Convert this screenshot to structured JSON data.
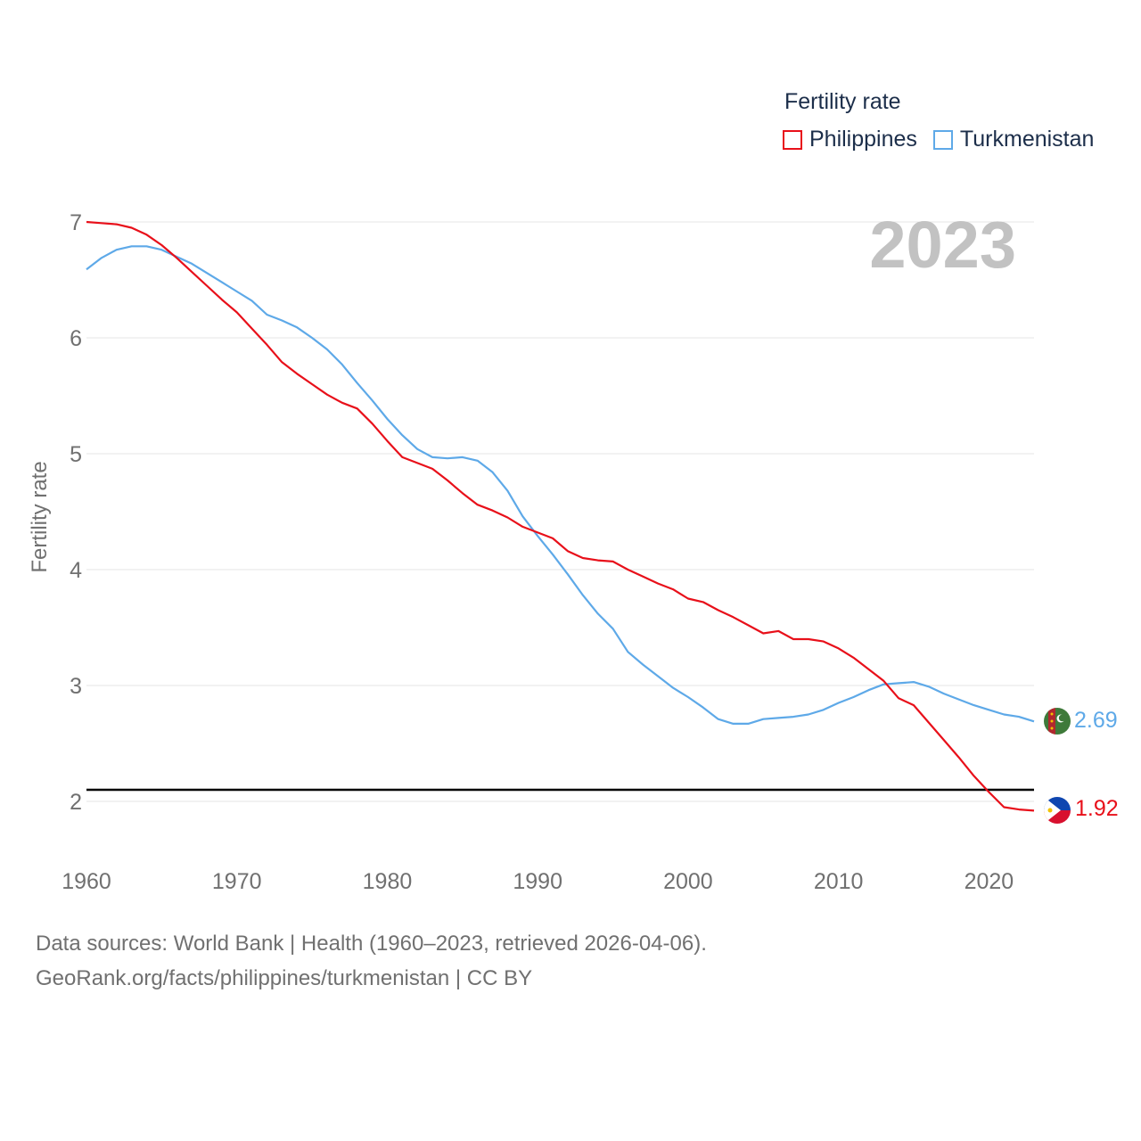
{
  "legend": {
    "title": "Fertility rate",
    "items": [
      {
        "label": "Philippines",
        "color": "#e8101a"
      },
      {
        "label": "Turkmenistan",
        "color": "#5ea9e8"
      }
    ]
  },
  "footer": {
    "line1": "Data sources: World Bank | Health (1960–2023, retrieved 2026-04-06).",
    "line2": "GeoRank.org/facts/philippines/turkmenistan | CC BY"
  },
  "chart_data": {
    "type": "line",
    "title": "",
    "year_label": "2023",
    "xlabel": "",
    "ylabel": "Fertility rate",
    "xlim": [
      1960,
      2023
    ],
    "ylim": [
      1.6,
      7.1
    ],
    "xticks": [
      1960,
      1970,
      1980,
      1990,
      2000,
      2010,
      2020
    ],
    "yticks": [
      2,
      3,
      4,
      5,
      6,
      7
    ],
    "reference_line": {
      "y": 2.1,
      "color": "#000000"
    },
    "x": [
      1960,
      1961,
      1962,
      1963,
      1964,
      1965,
      1966,
      1967,
      1968,
      1969,
      1970,
      1971,
      1972,
      1973,
      1974,
      1975,
      1976,
      1977,
      1978,
      1979,
      1980,
      1981,
      1982,
      1983,
      1984,
      1985,
      1986,
      1987,
      1988,
      1989,
      1990,
      1991,
      1992,
      1993,
      1994,
      1995,
      1996,
      1997,
      1998,
      1999,
      2000,
      2001,
      2002,
      2003,
      2004,
      2005,
      2006,
      2007,
      2008,
      2009,
      2010,
      2011,
      2012,
      2013,
      2014,
      2015,
      2016,
      2017,
      2018,
      2019,
      2020,
      2021,
      2022,
      2023
    ],
    "series": [
      {
        "name": "Philippines",
        "color": "#e8101a",
        "end_label": "1.92",
        "flag": "philippines-flag",
        "values": [
          7.0,
          6.99,
          6.98,
          6.95,
          6.89,
          6.8,
          6.69,
          6.57,
          6.45,
          6.33,
          6.22,
          6.08,
          5.94,
          5.79,
          5.69,
          5.6,
          5.51,
          5.44,
          5.39,
          5.26,
          5.11,
          4.97,
          4.92,
          4.87,
          4.77,
          4.66,
          4.56,
          4.51,
          4.45,
          4.37,
          4.32,
          4.27,
          4.16,
          4.1,
          4.08,
          4.07,
          4.0,
          3.94,
          3.88,
          3.83,
          3.75,
          3.72,
          3.65,
          3.59,
          3.52,
          3.45,
          3.47,
          3.4,
          3.4,
          3.38,
          3.32,
          3.24,
          3.14,
          3.04,
          2.89,
          2.83,
          2.68,
          2.53,
          2.38,
          2.22,
          2.08,
          1.95,
          1.93,
          1.92
        ]
      },
      {
        "name": "Turkmenistan",
        "color": "#5ea9e8",
        "end_label": "2.69",
        "flag": "turkmenistan-flag",
        "values": [
          6.59,
          6.69,
          6.76,
          6.79,
          6.79,
          6.76,
          6.7,
          6.64,
          6.56,
          6.48,
          6.4,
          6.32,
          6.2,
          6.15,
          6.09,
          6.0,
          5.9,
          5.77,
          5.61,
          5.46,
          5.3,
          5.16,
          5.04,
          4.97,
          4.96,
          4.97,
          4.94,
          4.84,
          4.68,
          4.46,
          4.29,
          4.13,
          3.96,
          3.78,
          3.62,
          3.49,
          3.29,
          3.18,
          3.08,
          2.98,
          2.9,
          2.81,
          2.71,
          2.67,
          2.67,
          2.71,
          2.72,
          2.73,
          2.75,
          2.79,
          2.85,
          2.9,
          2.96,
          3.01,
          3.02,
          3.03,
          2.99,
          2.93,
          2.88,
          2.83,
          2.79,
          2.75,
          2.73,
          2.69
        ]
      }
    ]
  }
}
